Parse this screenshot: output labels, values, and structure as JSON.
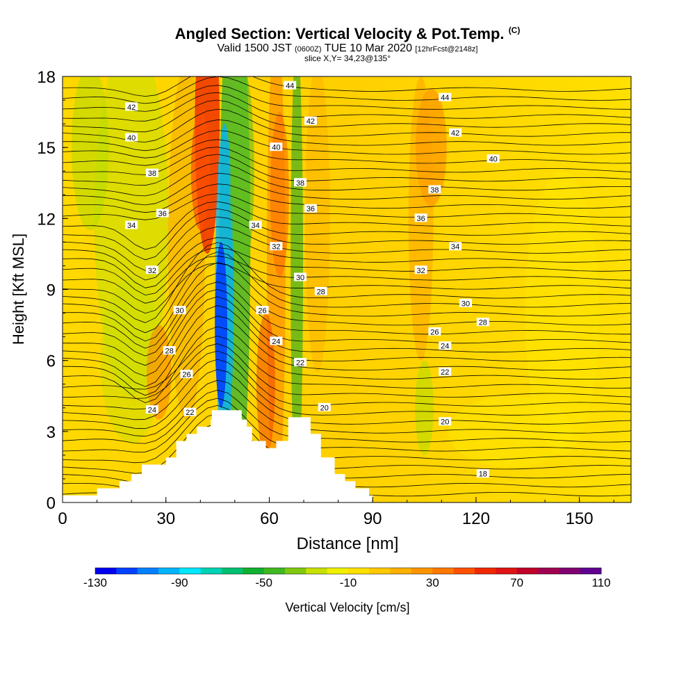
{
  "title": {
    "main": "Angled Section: Vertical Velocity & Pot.Temp.",
    "copyright": "(C)"
  },
  "subtitle": {
    "valid": "Valid 1500 JST",
    "utc": "(0600Z)",
    "date": "TUE 10 Mar 2020",
    "forecast": "[12hrFcst@2148z]"
  },
  "slice_info": "slice X,Y= 34,23@135°",
  "colorbar": {
    "label": "Vertical Velocity [cm/s]",
    "tick_labels": [
      "-130",
      "-90",
      "-50",
      "-10",
      "30",
      "70",
      "110"
    ],
    "colors": [
      "#0000f0",
      "#0040ff",
      "#0080ff",
      "#00b4ff",
      "#00e6ff",
      "#00d2b4",
      "#00c070",
      "#10b030",
      "#40b820",
      "#80c810",
      "#c8e000",
      "#f0f000",
      "#ffe000",
      "#ffc800",
      "#ffb000",
      "#ff9400",
      "#ff7800",
      "#ff5000",
      "#f02800",
      "#e01414",
      "#c00028",
      "#a00050",
      "#800070",
      "#600090"
    ]
  },
  "chart_data": {
    "type": "heatmap",
    "title": "Angled Section: Vertical Velocity & Pot.Temp.",
    "xlabel": "Distance [nm]",
    "ylabel": "Height [Kft MSL]",
    "xlim": [
      0,
      165
    ],
    "ylim": [
      0,
      18
    ],
    "x_ticks": [
      0,
      30,
      60,
      90,
      120,
      150
    ],
    "y_ticks": [
      0,
      3,
      6,
      9,
      12,
      15,
      18
    ],
    "filled_field": "Vertical Velocity [cm/s]",
    "filled_range": [
      -130,
      110
    ],
    "contour_field": "Potential Temperature (C)",
    "contour_levels": [
      18,
      20,
      22,
      24,
      26,
      28,
      30,
      32,
      34,
      36,
      38,
      40,
      42,
      44
    ],
    "contour_labels": [
      {
        "text": "44",
        "x": 66,
        "y": 17.6
      },
      {
        "text": "44",
        "x": 111,
        "y": 17.1
      },
      {
        "text": "42",
        "x": 20,
        "y": 16.7
      },
      {
        "text": "42",
        "x": 72,
        "y": 16.1
      },
      {
        "text": "42",
        "x": 114,
        "y": 15.6
      },
      {
        "text": "40",
        "x": 20,
        "y": 15.4
      },
      {
        "text": "40",
        "x": 62,
        "y": 15.0
      },
      {
        "text": "40",
        "x": 125,
        "y": 14.5
      },
      {
        "text": "38",
        "x": 26,
        "y": 13.9
      },
      {
        "text": "38",
        "x": 69,
        "y": 13.5
      },
      {
        "text": "38",
        "x": 108,
        "y": 13.2
      },
      {
        "text": "36",
        "x": 29,
        "y": 12.2
      },
      {
        "text": "36",
        "x": 72,
        "y": 12.4
      },
      {
        "text": "36",
        "x": 104,
        "y": 12.0
      },
      {
        "text": "34",
        "x": 20,
        "y": 11.7
      },
      {
        "text": "34",
        "x": 56,
        "y": 11.7
      },
      {
        "text": "34",
        "x": 114,
        "y": 10.8
      },
      {
        "text": "32",
        "x": 26,
        "y": 9.8
      },
      {
        "text": "32",
        "x": 62,
        "y": 10.8
      },
      {
        "text": "32",
        "x": 104,
        "y": 9.8
      },
      {
        "text": "30",
        "x": 69,
        "y": 9.5
      },
      {
        "text": "30",
        "x": 117,
        "y": 8.4
      },
      {
        "text": "30",
        "x": 34,
        "y": 8.1
      },
      {
        "text": "28",
        "x": 75,
        "y": 8.9
      },
      {
        "text": "28",
        "x": 122,
        "y": 7.6
      },
      {
        "text": "28",
        "x": 31,
        "y": 6.4
      },
      {
        "text": "26",
        "x": 58,
        "y": 8.1
      },
      {
        "text": "26",
        "x": 108,
        "y": 7.2
      },
      {
        "text": "26",
        "x": 36,
        "y": 5.4
      },
      {
        "text": "24",
        "x": 62,
        "y": 6.8
      },
      {
        "text": "24",
        "x": 111,
        "y": 6.6
      },
      {
        "text": "24",
        "x": 26,
        "y": 3.9
      },
      {
        "text": "22",
        "x": 69,
        "y": 5.9
      },
      {
        "text": "22",
        "x": 111,
        "y": 5.5
      },
      {
        "text": "22",
        "x": 37,
        "y": 3.8
      },
      {
        "text": "20",
        "x": 76,
        "y": 4.0
      },
      {
        "text": "20",
        "x": 111,
        "y": 3.4
      },
      {
        "text": "18",
        "x": 122,
        "y": 1.2
      }
    ],
    "terrain_profile": [
      {
        "x": 0,
        "y": 0.3
      },
      {
        "x": 10,
        "y": 0.3
      },
      {
        "x": 10,
        "y": 0.6
      },
      {
        "x": 16.5,
        "y": 0.6
      },
      {
        "x": 16.5,
        "y": 0.9
      },
      {
        "x": 20,
        "y": 0.9
      },
      {
        "x": 20,
        "y": 1.2
      },
      {
        "x": 23,
        "y": 1.2
      },
      {
        "x": 23,
        "y": 1.6
      },
      {
        "x": 30,
        "y": 1.6
      },
      {
        "x": 30,
        "y": 1.9
      },
      {
        "x": 33,
        "y": 1.9
      },
      {
        "x": 33,
        "y": 2.6
      },
      {
        "x": 36,
        "y": 2.6
      },
      {
        "x": 36,
        "y": 2.9
      },
      {
        "x": 39,
        "y": 2.9
      },
      {
        "x": 39,
        "y": 3.2
      },
      {
        "x": 43,
        "y": 3.2
      },
      {
        "x": 43,
        "y": 3.5
      },
      {
        "x": 43.3,
        "y": 3.5
      },
      {
        "x": 43.3,
        "y": 3.9
      },
      {
        "x": 52,
        "y": 3.9
      },
      {
        "x": 52,
        "y": 3.5
      },
      {
        "x": 53.5,
        "y": 3.5
      },
      {
        "x": 53.5,
        "y": 3.2
      },
      {
        "x": 55,
        "y": 3.2
      },
      {
        "x": 55,
        "y": 2.6
      },
      {
        "x": 59,
        "y": 2.6
      },
      {
        "x": 59,
        "y": 2.3
      },
      {
        "x": 62,
        "y": 2.3
      },
      {
        "x": 62,
        "y": 2.6
      },
      {
        "x": 65.5,
        "y": 2.6
      },
      {
        "x": 65.5,
        "y": 3.6
      },
      {
        "x": 72,
        "y": 3.6
      },
      {
        "x": 72,
        "y": 2.9
      },
      {
        "x": 75,
        "y": 2.9
      },
      {
        "x": 75,
        "y": 1.9
      },
      {
        "x": 79,
        "y": 1.9
      },
      {
        "x": 79,
        "y": 1.2
      },
      {
        "x": 82,
        "y": 1.2
      },
      {
        "x": 82,
        "y": 0.9
      },
      {
        "x": 85,
        "y": 0.9
      },
      {
        "x": 85,
        "y": 0.6
      },
      {
        "x": 89,
        "y": 0.6
      },
      {
        "x": 89,
        "y": 0.3
      },
      {
        "x": 90,
        "y": 0.3
      },
      {
        "x": 90,
        "y": 0
      }
    ]
  }
}
